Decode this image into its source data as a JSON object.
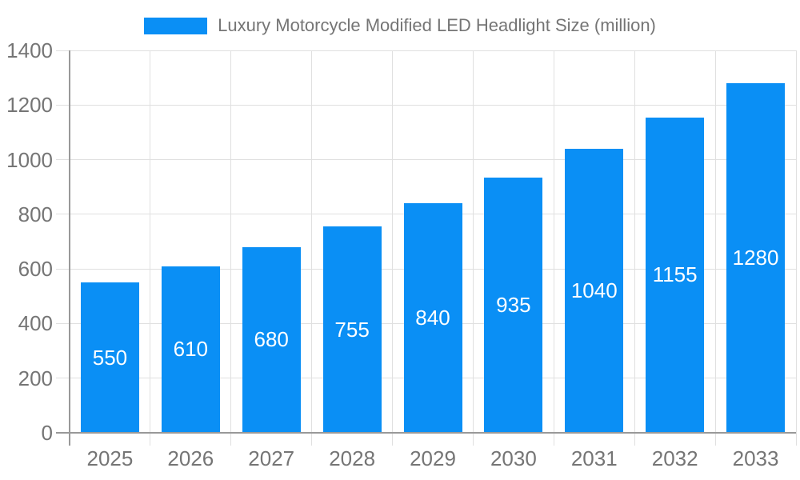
{
  "chart_data": {
    "type": "bar",
    "title": "Luxury Motorcycle Modified LED Headlight Size (million)",
    "series_name": "Luxury Motorcycle Modified LED Headlight Size (million)",
    "categories": [
      "2025",
      "2026",
      "2027",
      "2028",
      "2029",
      "2030",
      "2031",
      "2032",
      "2033"
    ],
    "values": [
      550,
      610,
      680,
      755,
      840,
      935,
      1040,
      1155,
      1280
    ],
    "xlabel": "",
    "ylabel": "",
    "ylim": [
      0,
      1400
    ],
    "yticks": [
      0,
      200,
      400,
      600,
      800,
      1000,
      1200,
      1400
    ],
    "grid": true,
    "legend_position": "top",
    "bar_color": "#0a8ff5",
    "bar_label_color": "#ffffff",
    "grid_color": "#e0e0e0",
    "axis_color": "#999999",
    "tick_text_color": "#757575",
    "background_color": "#ffffff"
  }
}
